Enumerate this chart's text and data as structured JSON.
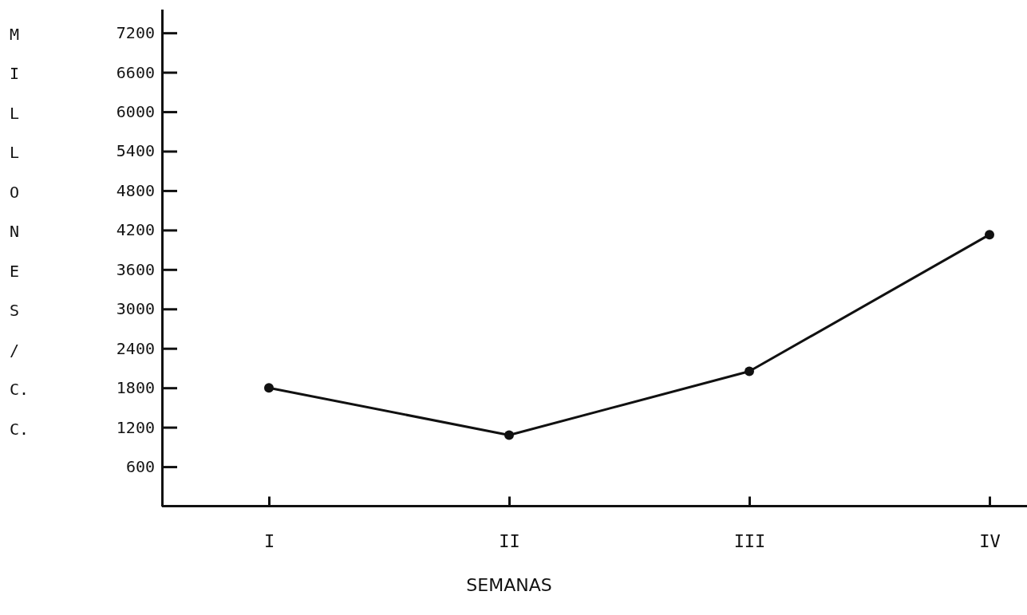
{
  "chart_data": {
    "type": "line",
    "xlabel": "SEMANAS",
    "ylabel": "MILLONES/C.C.",
    "categories": [
      "I",
      "II",
      "III",
      "IV"
    ],
    "series": [
      {
        "color": "#111111",
        "values": [
          1800,
          1080,
          2050,
          4130
        ]
      }
    ],
    "ylim": [
      0,
      7560
    ],
    "yticks": [
      600,
      1200,
      1800,
      2400,
      3000,
      3600,
      4200,
      4800,
      5400,
      6000,
      6600,
      7200
    ],
    "marker": "circle",
    "line_style": "solid"
  }
}
